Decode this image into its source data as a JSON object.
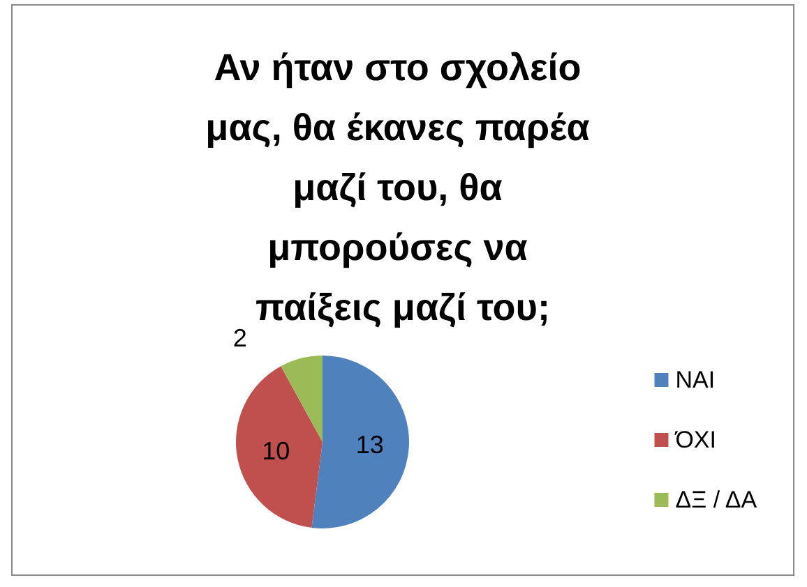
{
  "chart_data": {
    "type": "pie",
    "title": "Αν ήταν στο σχολείο μας, θα έκανες παρέα μαζί του, θα μπορούσες να παίξεις μαζί του;",
    "categories": [
      "ΝΑΙ",
      "ΌΧΙ",
      "ΔΞ / ΔΑ"
    ],
    "values": [
      13,
      10,
      2
    ],
    "colors": [
      "#4f81bd",
      "#c0504d",
      "#9bbb59"
    ],
    "data_labels": true,
    "legend": "right"
  }
}
